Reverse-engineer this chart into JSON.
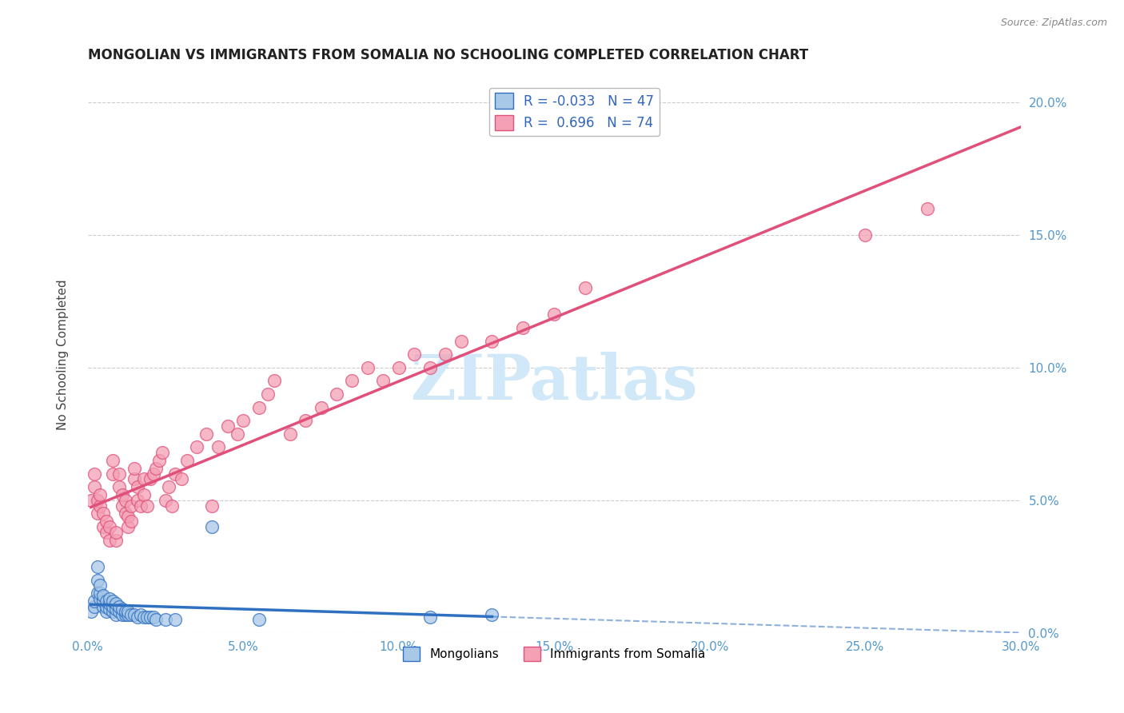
{
  "title": "MONGOLIAN VS IMMIGRANTS FROM SOMALIA NO SCHOOLING COMPLETED CORRELATION CHART",
  "source": "Source: ZipAtlas.com",
  "ylabel": "No Schooling Completed",
  "xlim": [
    0.0,
    0.3
  ],
  "ylim": [
    0.0,
    0.21
  ],
  "xticks": [
    0.0,
    0.05,
    0.1,
    0.15,
    0.2,
    0.25,
    0.3
  ],
  "yticks": [
    0.0,
    0.05,
    0.1,
    0.15,
    0.2
  ],
  "mongolian_R": -0.033,
  "mongolian_N": 47,
  "somalia_R": 0.696,
  "somalia_N": 74,
  "mongolian_color": "#a8c8e8",
  "somalia_color": "#f4a0b5",
  "mongolian_line_color": "#3070c0",
  "somalia_line_color": "#e0507a",
  "watermark": "ZIPatlas",
  "watermark_color": "#d0e8f8",
  "legend_mongolian": "Mongolians",
  "legend_somalia": "Immigrants from Somalia",
  "mongolian_x": [
    0.001,
    0.002,
    0.002,
    0.003,
    0.003,
    0.003,
    0.004,
    0.004,
    0.004,
    0.005,
    0.005,
    0.005,
    0.006,
    0.006,
    0.006,
    0.007,
    0.007,
    0.007,
    0.008,
    0.008,
    0.008,
    0.009,
    0.009,
    0.009,
    0.01,
    0.01,
    0.011,
    0.011,
    0.012,
    0.012,
    0.013,
    0.013,
    0.014,
    0.015,
    0.016,
    0.017,
    0.018,
    0.019,
    0.02,
    0.021,
    0.022,
    0.025,
    0.028,
    0.04,
    0.055,
    0.11,
    0.13
  ],
  "mongolian_y": [
    0.008,
    0.01,
    0.012,
    0.015,
    0.02,
    0.025,
    0.013,
    0.015,
    0.018,
    0.01,
    0.012,
    0.014,
    0.008,
    0.01,
    0.012,
    0.009,
    0.011,
    0.013,
    0.008,
    0.01,
    0.012,
    0.007,
    0.009,
    0.011,
    0.008,
    0.01,
    0.007,
    0.009,
    0.007,
    0.008,
    0.007,
    0.008,
    0.007,
    0.007,
    0.006,
    0.007,
    0.006,
    0.006,
    0.006,
    0.006,
    0.005,
    0.005,
    0.005,
    0.04,
    0.005,
    0.006,
    0.007
  ],
  "somalia_x": [
    0.001,
    0.002,
    0.002,
    0.003,
    0.003,
    0.004,
    0.004,
    0.005,
    0.005,
    0.006,
    0.006,
    0.007,
    0.007,
    0.008,
    0.008,
    0.009,
    0.009,
    0.01,
    0.01,
    0.011,
    0.011,
    0.012,
    0.012,
    0.013,
    0.013,
    0.014,
    0.014,
    0.015,
    0.015,
    0.016,
    0.016,
    0.017,
    0.018,
    0.018,
    0.019,
    0.02,
    0.021,
    0.022,
    0.023,
    0.024,
    0.025,
    0.026,
    0.027,
    0.028,
    0.03,
    0.032,
    0.035,
    0.038,
    0.04,
    0.042,
    0.045,
    0.048,
    0.05,
    0.055,
    0.058,
    0.06,
    0.065,
    0.07,
    0.075,
    0.08,
    0.085,
    0.09,
    0.095,
    0.1,
    0.105,
    0.11,
    0.115,
    0.12,
    0.13,
    0.14,
    0.15,
    0.16,
    0.25,
    0.27
  ],
  "somalia_y": [
    0.05,
    0.055,
    0.06,
    0.045,
    0.05,
    0.048,
    0.052,
    0.04,
    0.045,
    0.038,
    0.042,
    0.035,
    0.04,
    0.06,
    0.065,
    0.035,
    0.038,
    0.055,
    0.06,
    0.048,
    0.052,
    0.045,
    0.05,
    0.04,
    0.044,
    0.042,
    0.048,
    0.058,
    0.062,
    0.05,
    0.055,
    0.048,
    0.052,
    0.058,
    0.048,
    0.058,
    0.06,
    0.062,
    0.065,
    0.068,
    0.05,
    0.055,
    0.048,
    0.06,
    0.058,
    0.065,
    0.07,
    0.075,
    0.048,
    0.07,
    0.078,
    0.075,
    0.08,
    0.085,
    0.09,
    0.095,
    0.075,
    0.08,
    0.085,
    0.09,
    0.095,
    0.1,
    0.095,
    0.1,
    0.105,
    0.1,
    0.105,
    0.11,
    0.11,
    0.115,
    0.12,
    0.13,
    0.15,
    0.16
  ],
  "background_color": "#ffffff",
  "grid_color": "#cccccc",
  "tick_color": "#5599cc"
}
